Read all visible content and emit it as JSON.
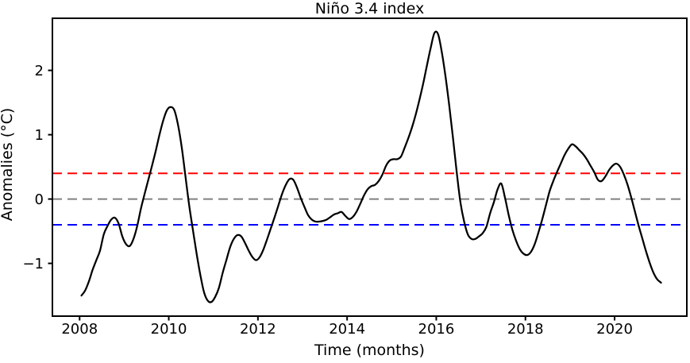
{
  "chart_data": {
    "type": "line",
    "title": "Niño 3.4 index",
    "xlabel": "Time (months)",
    "ylabel": "Anomalies (°C)",
    "xlim": [
      2007.39,
      2021.62
    ],
    "ylim": [
      -1.82,
      2.81
    ],
    "grid": false,
    "legend": false,
    "xticks": {
      "values": [
        2008,
        2010,
        2012,
        2014,
        2016,
        2018,
        2020
      ],
      "labels": [
        "2008",
        "2010",
        "2012",
        "2014",
        "2016",
        "2018",
        "2020"
      ]
    },
    "yticks": {
      "values": [
        -1,
        0,
        1,
        2
      ],
      "labels": [
        "−1",
        "0",
        "1",
        "2"
      ]
    },
    "hlines": [
      {
        "name": "upper-threshold-line",
        "y": 0.4,
        "color": "#ff0000",
        "style": "dashed"
      },
      {
        "name": "zero-line",
        "y": 0.0,
        "color": "#808080",
        "style": "dashed"
      },
      {
        "name": "lower-threshold-line",
        "y": -0.4,
        "color": "#0000ff",
        "style": "dashed"
      }
    ],
    "series": [
      {
        "name": "nino34-anomaly",
        "color": "#000000",
        "x_start_year": 2008,
        "x_step_months": 1,
        "x_position": "month-center",
        "monthly_values": [
          -1.5,
          -1.42,
          -1.28,
          -1.1,
          -0.95,
          -0.8,
          -0.55,
          -0.42,
          -0.32,
          -0.29,
          -0.38,
          -0.58,
          -0.7,
          -0.73,
          -0.62,
          -0.42,
          -0.15,
          0.08,
          0.3,
          0.52,
          0.75,
          1.0,
          1.22,
          1.38,
          1.43,
          1.38,
          1.15,
          0.8,
          0.35,
          -0.1,
          -0.48,
          -0.85,
          -1.18,
          -1.45,
          -1.58,
          -1.6,
          -1.52,
          -1.38,
          -1.15,
          -0.95,
          -0.75,
          -0.62,
          -0.56,
          -0.58,
          -0.68,
          -0.8,
          -0.9,
          -0.95,
          -0.9,
          -0.78,
          -0.62,
          -0.45,
          -0.28,
          -0.1,
          0.08,
          0.22,
          0.31,
          0.3,
          0.18,
          0.02,
          -0.12,
          -0.25,
          -0.32,
          -0.35,
          -0.35,
          -0.34,
          -0.32,
          -0.28,
          -0.24,
          -0.22,
          -0.2,
          -0.26,
          -0.31,
          -0.28,
          -0.2,
          -0.08,
          0.05,
          0.15,
          0.2,
          0.22,
          0.28,
          0.38,
          0.52,
          0.6,
          0.62,
          0.62,
          0.66,
          0.8,
          0.95,
          1.12,
          1.32,
          1.55,
          1.8,
          2.08,
          2.35,
          2.58,
          2.56,
          2.28,
          1.9,
          1.45,
          0.95,
          0.42,
          -0.05,
          -0.35,
          -0.55,
          -0.62,
          -0.62,
          -0.58,
          -0.53,
          -0.43,
          -0.22,
          -0.05,
          0.15,
          0.24,
          0.02,
          -0.25,
          -0.48,
          -0.65,
          -0.78,
          -0.85,
          -0.87,
          -0.82,
          -0.7,
          -0.52,
          -0.32,
          -0.1,
          0.12,
          0.28,
          0.42,
          0.55,
          0.68,
          0.78,
          0.85,
          0.82,
          0.76,
          0.7,
          0.62,
          0.52,
          0.42,
          0.3,
          0.28,
          0.35,
          0.45,
          0.52,
          0.55,
          0.5,
          0.38,
          0.22,
          0.02,
          -0.2,
          -0.42,
          -0.62,
          -0.82,
          -1.0,
          -1.15,
          -1.25,
          -1.3
        ]
      }
    ]
  }
}
